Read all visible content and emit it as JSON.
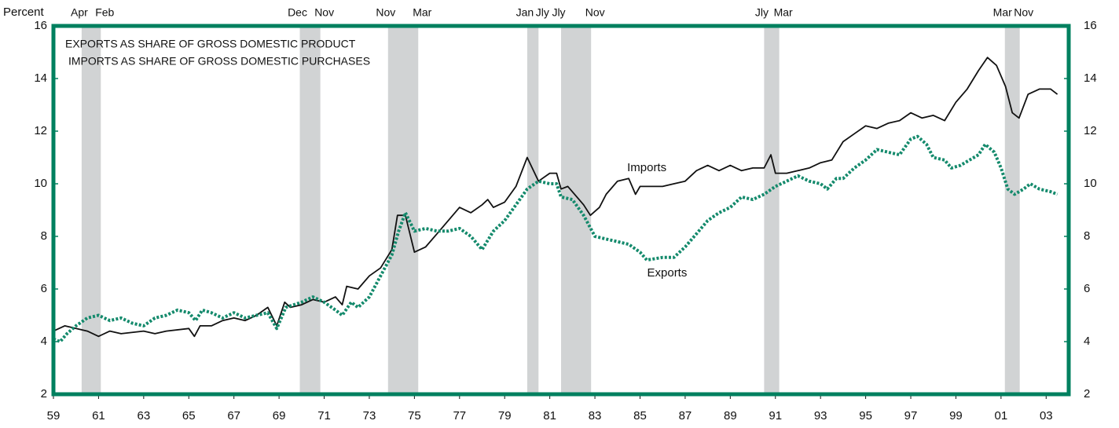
{
  "chart_data": {
    "type": "line",
    "y_axis_label": "Percent",
    "notes": [
      "EXPORTS AS SHARE OF GROSS DOMESTIC PRODUCT",
      "IMPORTS AS SHARE OF GROSS DOMESTIC PURCHASES"
    ],
    "xlim": [
      1959,
      2004
    ],
    "xticks": [
      {
        "value": 1959,
        "label": "59"
      },
      {
        "value": 1961,
        "label": "61"
      },
      {
        "value": 1963,
        "label": "63"
      },
      {
        "value": 1965,
        "label": "65"
      },
      {
        "value": 1967,
        "label": "67"
      },
      {
        "value": 1969,
        "label": "69"
      },
      {
        "value": 1971,
        "label": "71"
      },
      {
        "value": 1973,
        "label": "73"
      },
      {
        "value": 1975,
        "label": "75"
      },
      {
        "value": 1977,
        "label": "77"
      },
      {
        "value": 1979,
        "label": "79"
      },
      {
        "value": 1981,
        "label": "81"
      },
      {
        "value": 1983,
        "label": "83"
      },
      {
        "value": 1985,
        "label": "85"
      },
      {
        "value": 1987,
        "label": "87"
      },
      {
        "value": 1989,
        "label": "89"
      },
      {
        "value": 1991,
        "label": "91"
      },
      {
        "value": 1993,
        "label": "93"
      },
      {
        "value": 1995,
        "label": "95"
      },
      {
        "value": 1997,
        "label": "97"
      },
      {
        "value": 1999,
        "label": "99"
      },
      {
        "value": 2001,
        "label": "01"
      },
      {
        "value": 2003,
        "label": "03"
      }
    ],
    "ylim": [
      2,
      16
    ],
    "yticks": [
      2,
      4,
      6,
      8,
      10,
      12,
      14,
      16
    ],
    "recessions": [
      {
        "start": 1960.25,
        "end": 1961.1,
        "start_label": "Apr",
        "end_label": "Feb"
      },
      {
        "start": 1969.92,
        "end": 1970.83,
        "start_label": "Dec",
        "end_label": "Nov"
      },
      {
        "start": 1973.83,
        "end": 1975.17,
        "start_label": "Nov",
        "end_label": "Mar"
      },
      {
        "start": 1980.0,
        "end": 1980.5,
        "start_label": "Jan",
        "end_label": "Jly"
      },
      {
        "start": 1981.5,
        "end": 1982.83,
        "start_label": "Jly",
        "end_label": "Nov"
      },
      {
        "start": 1990.5,
        "end": 1991.17,
        "start_label": "Jly",
        "end_label": "Mar"
      },
      {
        "start": 2001.17,
        "end": 2001.83,
        "start_label": "Mar",
        "end_label": "Nov"
      }
    ],
    "recession_color": "#d1d3d4",
    "frame_color": "#00805f",
    "series": [
      {
        "name": "Imports",
        "color": "#111111",
        "style": "solid",
        "label_at": [
          1985.3,
          10.6
        ],
        "x": [
          1959.0,
          1959.5,
          1960.0,
          1960.5,
          1961.0,
          1961.5,
          1962.0,
          1963.0,
          1963.5,
          1964.0,
          1965.0,
          1965.25,
          1965.5,
          1966.0,
          1966.5,
          1967.0,
          1967.5,
          1968.0,
          1968.5,
          1968.9,
          1969.25,
          1969.5,
          1970.0,
          1970.5,
          1971.0,
          1971.5,
          1971.8,
          1972.0,
          1972.5,
          1973.0,
          1973.5,
          1974.0,
          1974.25,
          1974.6,
          1975.0,
          1975.5,
          1976.0,
          1976.5,
          1977.0,
          1977.5,
          1978.0,
          1978.25,
          1978.5,
          1979.0,
          1979.5,
          1980.0,
          1980.5,
          1981.0,
          1981.3,
          1981.5,
          1981.8,
          1982.5,
          1982.8,
          1983.2,
          1983.5,
          1984.0,
          1984.5,
          1984.8,
          1985.0,
          1985.5,
          1986.0,
          1986.5,
          1987.0,
          1987.5,
          1988.0,
          1988.5,
          1989.0,
          1989.5,
          1990.0,
          1990.5,
          1990.8,
          1991.0,
          1991.5,
          1992.0,
          1992.5,
          1993.0,
          1993.5,
          1994.0,
          1994.5,
          1995.0,
          1995.5,
          1996.0,
          1996.5,
          1997.0,
          1997.5,
          1998.0,
          1998.5,
          1999.0,
          1999.5,
          2000.0,
          2000.4,
          2000.8,
          2001.2,
          2001.5,
          2001.8,
          2002.2,
          2002.7,
          2003.2,
          2003.5
        ],
        "values": [
          4.4,
          4.6,
          4.5,
          4.4,
          4.2,
          4.4,
          4.3,
          4.4,
          4.3,
          4.4,
          4.5,
          4.2,
          4.6,
          4.6,
          4.8,
          4.9,
          4.8,
          5.0,
          5.3,
          4.6,
          5.5,
          5.3,
          5.4,
          5.6,
          5.5,
          5.7,
          5.4,
          6.1,
          6.0,
          6.5,
          6.8,
          7.5,
          8.8,
          8.8,
          7.4,
          7.6,
          8.1,
          8.6,
          9.1,
          8.9,
          9.2,
          9.4,
          9.1,
          9.3,
          9.9,
          11.0,
          10.1,
          10.4,
          10.4,
          9.8,
          9.9,
          9.2,
          8.8,
          9.1,
          9.6,
          10.1,
          10.2,
          9.6,
          9.9,
          9.9,
          9.9,
          10.0,
          10.1,
          10.5,
          10.7,
          10.5,
          10.7,
          10.5,
          10.6,
          10.6,
          11.1,
          10.4,
          10.4,
          10.5,
          10.6,
          10.8,
          10.9,
          11.6,
          11.9,
          12.2,
          12.1,
          12.3,
          12.4,
          12.7,
          12.5,
          12.6,
          12.4,
          13.1,
          13.6,
          14.3,
          14.8,
          14.5,
          13.7,
          12.7,
          12.5,
          13.4,
          13.6,
          13.6,
          13.4
        ]
      },
      {
        "name": "Exports",
        "color": "#148a6c",
        "style": "dotted",
        "label_at": [
          1986.2,
          6.6
        ],
        "x": [
          1959.0,
          1959.3,
          1959.6,
          1960.0,
          1960.5,
          1961.0,
          1961.5,
          1962.0,
          1962.5,
          1963.0,
          1963.5,
          1964.0,
          1964.5,
          1965.0,
          1965.3,
          1965.6,
          1966.0,
          1966.5,
          1967.0,
          1967.5,
          1968.0,
          1968.5,
          1968.9,
          1969.3,
          1970.0,
          1970.5,
          1971.0,
          1971.5,
          1971.8,
          1972.2,
          1972.5,
          1973.0,
          1973.5,
          1974.0,
          1974.3,
          1974.6,
          1975.0,
          1975.5,
          1976.0,
          1976.5,
          1977.0,
          1977.5,
          1978.0,
          1978.5,
          1979.0,
          1979.5,
          1980.0,
          1980.5,
          1981.0,
          1981.3,
          1981.5,
          1982.0,
          1982.5,
          1983.0,
          1983.5,
          1984.0,
          1984.5,
          1985.0,
          1985.3,
          1986.0,
          1986.5,
          1987.0,
          1987.5,
          1988.0,
          1988.5,
          1989.0,
          1989.5,
          1990.0,
          1990.5,
          1991.0,
          1991.5,
          1992.0,
          1992.5,
          1993.0,
          1993.3,
          1993.7,
          1994.0,
          1994.5,
          1995.0,
          1995.5,
          1996.0,
          1996.5,
          1997.0,
          1997.3,
          1997.7,
          1998.0,
          1998.5,
          1998.8,
          1999.2,
          1999.6,
          2000.0,
          2000.3,
          2000.7,
          2001.0,
          2001.3,
          2001.6,
          2002.0,
          2002.3,
          2002.7,
          2003.2,
          2003.5
        ],
        "values": [
          4.1,
          4.0,
          4.3,
          4.6,
          4.9,
          5.0,
          4.8,
          4.9,
          4.7,
          4.6,
          4.9,
          5.0,
          5.2,
          5.1,
          4.8,
          5.2,
          5.1,
          4.9,
          5.1,
          4.9,
          5.0,
          5.1,
          4.5,
          5.3,
          5.5,
          5.7,
          5.5,
          5.2,
          5.0,
          5.5,
          5.3,
          5.7,
          6.5,
          7.3,
          8.2,
          8.9,
          8.2,
          8.3,
          8.2,
          8.2,
          8.3,
          8.0,
          7.5,
          8.2,
          8.6,
          9.2,
          9.8,
          10.1,
          10.0,
          10.0,
          9.5,
          9.4,
          8.8,
          8.0,
          7.9,
          7.8,
          7.7,
          7.4,
          7.1,
          7.2,
          7.2,
          7.6,
          8.1,
          8.6,
          8.9,
          9.1,
          9.5,
          9.4,
          9.6,
          9.9,
          10.1,
          10.3,
          10.1,
          10.0,
          9.8,
          10.2,
          10.2,
          10.6,
          10.9,
          11.3,
          11.2,
          11.1,
          11.7,
          11.8,
          11.5,
          11.0,
          10.9,
          10.6,
          10.7,
          10.9,
          11.1,
          11.5,
          11.2,
          10.6,
          9.8,
          9.6,
          9.8,
          10.0,
          9.8,
          9.7,
          9.6
        ]
      }
    ]
  }
}
